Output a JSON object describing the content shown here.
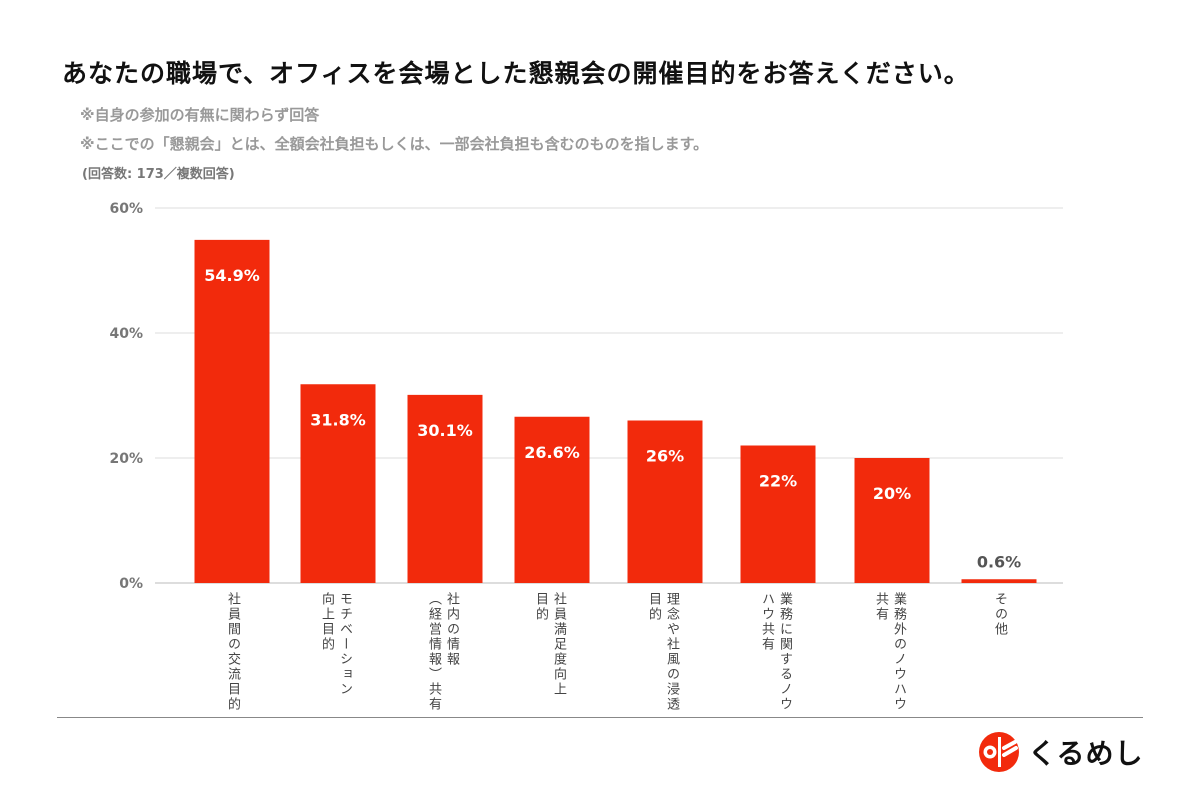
{
  "title": "あなたの職場で、オフィスを会場とした懇親会の開催目的をお答えください。",
  "notes": [
    "※自身の参加の有無に関わらず回答",
    "※ここでの「懇親会」とは、全額会社負担もしくは、一部会社負担も含むのものを指します。"
  ],
  "respondents": "(回答数: 173／複数回答)",
  "chart_data": {
    "type": "bar",
    "categories": [
      "社員間の交流目的",
      "モチベーション向上目的",
      "社内の情報（経営情報）共有",
      "社員満足度向上目的",
      "理念や社風の浸透目的",
      "業務に関するノウハウ共有",
      "業務外のノウハウ共有",
      "その他"
    ],
    "category_lines": [
      [
        "社員間の交流目的"
      ],
      [
        "モチベーション",
        "向上目的"
      ],
      [
        "社内の情報",
        "（経営情報）共有"
      ],
      [
        "社員満足度向上",
        "目的"
      ],
      [
        "理念や社風の浸透",
        "目的"
      ],
      [
        "業務に関するノウ",
        "ハウ共有"
      ],
      [
        "業務外のノウハウ",
        "共有"
      ],
      [
        "その他"
      ]
    ],
    "values": [
      54.9,
      31.8,
      30.1,
      26.6,
      26,
      22,
      20,
      0.6
    ],
    "data_labels": [
      "54.9%",
      "31.8%",
      "30.1%",
      "26.6%",
      "26%",
      "22%",
      "20%",
      "0.6%"
    ],
    "yticks": [
      "0%",
      "20%",
      "40%",
      "60%"
    ],
    "ytick_values": [
      0,
      20,
      40,
      60
    ],
    "ylim": [
      0,
      60
    ],
    "grid": true,
    "bar_color": "#f22a0c",
    "xlabel": "",
    "ylabel": ""
  },
  "logo": {
    "text": "くるめし",
    "color": "#f22a0c"
  }
}
